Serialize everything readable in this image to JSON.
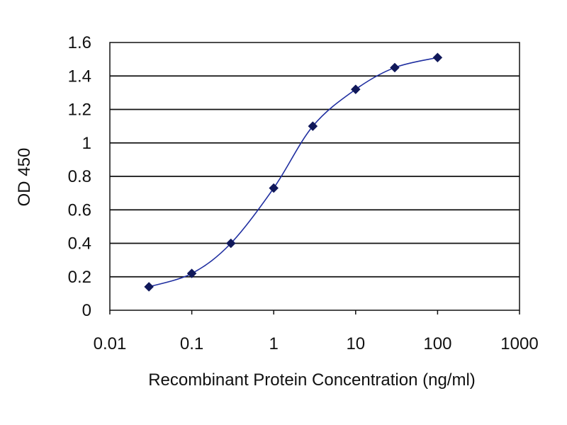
{
  "chart_data": {
    "type": "line",
    "title": "",
    "xlabel": "Recombinant Protein Concentration (ng/ml)",
    "ylabel": "OD 450",
    "x_scale": "log",
    "xlim": [
      0.01,
      1000
    ],
    "ylim": [
      0,
      1.6
    ],
    "x_ticks": [
      0.01,
      0.1,
      1,
      10,
      100,
      1000
    ],
    "x_tick_labels": [
      "0.01",
      "0.1",
      "1",
      "10",
      "100",
      "1000"
    ],
    "y_ticks": [
      0,
      0.2,
      0.4,
      0.6,
      0.8,
      1,
      1.2,
      1.4,
      1.6
    ],
    "y_tick_labels": [
      "0",
      "0.2",
      "0.4",
      "0.6",
      "0.8",
      "1",
      "1.2",
      "1.4",
      "1.6"
    ],
    "grid": "horizontal",
    "legend": "none",
    "series": [
      {
        "x": [
          0.03,
          0.1,
          0.3,
          1,
          3,
          10,
          30,
          100
        ],
        "y": [
          0.14,
          0.22,
          0.4,
          0.73,
          1.1,
          1.32,
          1.45,
          1.51
        ]
      }
    ],
    "colors": {
      "line": "#1f2ea0",
      "marker": "#10185a",
      "grid": "#111111",
      "plot_background": "#ffffff"
    }
  }
}
